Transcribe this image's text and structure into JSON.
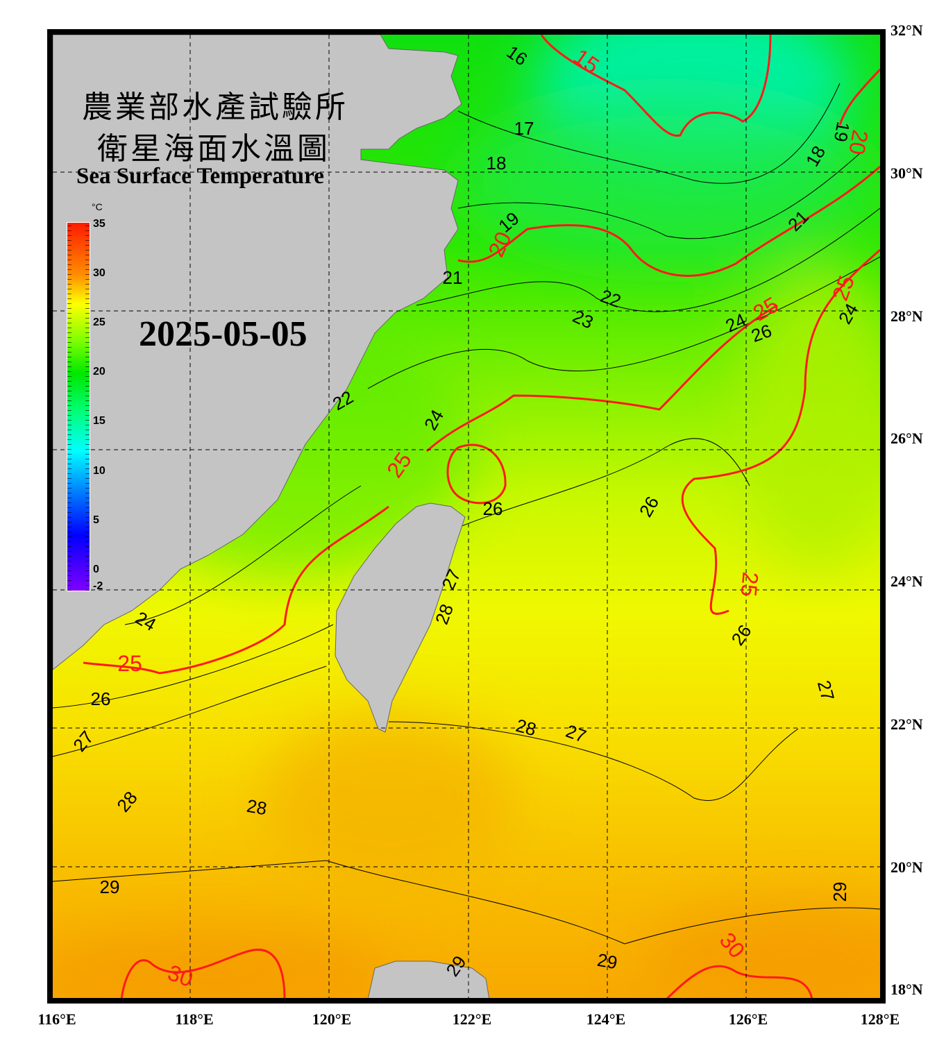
{
  "title_zh_line1": "農業部水產試驗所",
  "title_zh_line2": "衛星海面水溫圖",
  "title_en": "Sea Surface Temperature",
  "date": "2025-05-05",
  "colorbar": {
    "unit": "°C",
    "ticks": [
      "35",
      "30",
      "25",
      "20",
      "15",
      "10",
      "5",
      "0",
      "-2"
    ],
    "range": [
      -2,
      35
    ],
    "colors": [
      "#ff1a00",
      "#ff8c00",
      "#ffff00",
      "#80ff00",
      "#00e800",
      "#00ff80",
      "#00ffff",
      "#0080ff",
      "#0000ff",
      "#8000ff"
    ]
  },
  "axes": {
    "lat_labels": [
      "32°N",
      "30°N",
      "28°N",
      "26°N",
      "24°N",
      "22°N",
      "20°N",
      "18°N"
    ],
    "lon_labels": [
      "116°E",
      "118°E",
      "120°E",
      "122°E",
      "124°E",
      "126°E",
      "128°E"
    ],
    "lat_range": [
      18,
      32
    ],
    "lon_range": [
      116,
      128
    ],
    "grid": "dashed, every 2°"
  },
  "colors": {
    "land": "#c4c4c4",
    "contour_major": "#ff1a1a",
    "contour_minor": "#000000"
  },
  "contour_labels_major": [
    "15",
    "20",
    "20",
    "25",
    "25",
    "25",
    "25",
    "25",
    "30",
    "30"
  ],
  "contour_labels_minor": [
    "16",
    "17",
    "18",
    "19",
    "21",
    "22",
    "23",
    "24",
    "26",
    "24",
    "18",
    "19",
    "21",
    "22",
    "24",
    "26",
    "26",
    "27",
    "28",
    "24",
    "26",
    "27",
    "28",
    "28",
    "29",
    "28",
    "27",
    "26",
    "27",
    "29",
    "29",
    "29"
  ]
}
